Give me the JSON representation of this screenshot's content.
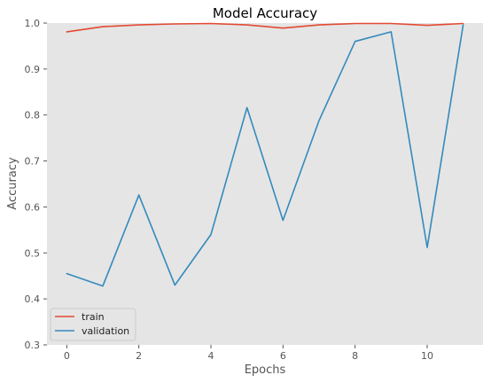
{
  "chart_data": {
    "type": "line",
    "title": "Model Accuracy",
    "xlabel": "Epochs",
    "ylabel": "Accuracy",
    "xlim": [
      -0.55,
      11.55
    ],
    "ylim": [
      0.3,
      1.0
    ],
    "x_ticks": [
      0,
      2,
      4,
      6,
      8,
      10
    ],
    "y_ticks": [
      0.3,
      0.4,
      0.5,
      0.6,
      0.7,
      0.8,
      0.9,
      1.0
    ],
    "x": [
      0,
      1,
      2,
      3,
      4,
      5,
      6,
      7,
      8,
      9,
      10,
      11
    ],
    "grid": false,
    "legend_position": "lower-left",
    "series": [
      {
        "name": "train",
        "color": "#E24A33",
        "values": [
          0.981,
          0.992,
          0.996,
          0.998,
          0.999,
          0.996,
          0.989,
          0.996,
          0.999,
          0.999,
          0.995,
          0.999
        ]
      },
      {
        "name": "validation",
        "color": "#348ABD",
        "values": [
          0.455,
          0.428,
          0.626,
          0.43,
          0.54,
          0.816,
          0.571,
          0.788,
          0.96,
          0.981,
          0.512,
          0.996
        ]
      }
    ]
  }
}
